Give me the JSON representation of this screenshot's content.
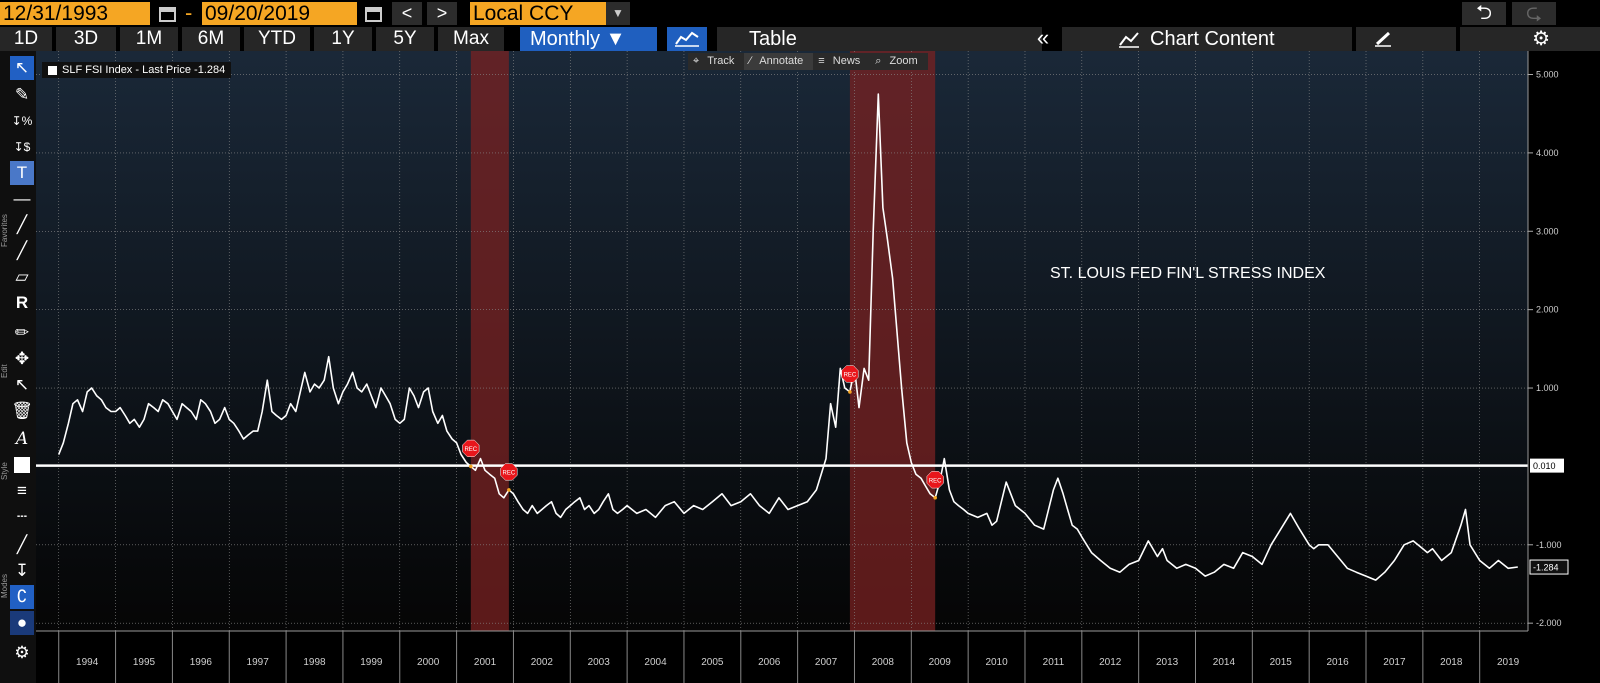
{
  "toolbar_top": {
    "start_date": "12/31/1993",
    "separator": "-",
    "end_date": "09/20/2019",
    "prev": "<",
    "next": ">",
    "currency": "Local CCY",
    "currency_caret": "▼",
    "undo": "⮌",
    "redo": "⮎"
  },
  "range_bar": {
    "buttons": [
      "1D",
      "3D",
      "1M",
      "6M",
      "YTD",
      "1Y",
      "5Y",
      "Max"
    ],
    "frequency": "Monthly ▼",
    "table": "Table",
    "collapse": "«",
    "chart_content": "Chart Content",
    "settings": "⚙"
  },
  "side": {
    "favorites": "Favorites",
    "edit": "Edit",
    "style": "Style",
    "modes": "Modes"
  },
  "chart_toolbar": {
    "track": "Track",
    "annotate": "Annotate",
    "news": "News",
    "zoom": "Zoom"
  },
  "legend": {
    "label": "SLF FSI Index - Last Price -1.284"
  },
  "annotation": "ST. LOUIS FED FIN'L STRESS INDEX",
  "colors": {
    "accent": "#f5a623",
    "selected": "#1f5fbf",
    "recession": "#7a2222",
    "line": "#ffffff"
  },
  "chart_data": {
    "type": "line",
    "title": "",
    "series": [
      {
        "name": "SLF FSI Index",
        "x": [
          1994.0,
          1994.08,
          1994.17,
          1994.25,
          1994.33,
          1994.42,
          1994.5,
          1994.58,
          1994.67,
          1994.75,
          1994.83,
          1994.92,
          1995.0,
          1995.08,
          1995.17,
          1995.25,
          1995.33,
          1995.42,
          1995.5,
          1995.58,
          1995.67,
          1995.75,
          1995.83,
          1995.92,
          1996.0,
          1996.08,
          1996.17,
          1996.25,
          1996.33,
          1996.42,
          1996.5,
          1996.58,
          1996.67,
          1996.75,
          1996.83,
          1996.92,
          1997.0,
          1997.08,
          1997.17,
          1997.25,
          1997.33,
          1997.42,
          1997.5,
          1997.58,
          1997.67,
          1997.75,
          1997.83,
          1997.92,
          1998.0,
          1998.08,
          1998.17,
          1998.25,
          1998.33,
          1998.42,
          1998.5,
          1998.58,
          1998.67,
          1998.75,
          1998.83,
          1998.92,
          1999.0,
          1999.08,
          1999.17,
          1999.25,
          1999.33,
          1999.42,
          1999.5,
          1999.58,
          1999.67,
          1999.75,
          1999.83,
          1999.92,
          2000.0,
          2000.08,
          2000.17,
          2000.25,
          2000.33,
          2000.42,
          2000.5,
          2000.58,
          2000.67,
          2000.75,
          2000.83,
          2000.92,
          2001.0,
          2001.08,
          2001.17,
          2001.25,
          2001.33,
          2001.42,
          2001.5,
          2001.58,
          2001.67,
          2001.75,
          2001.83,
          2001.92,
          2002.0,
          2002.08,
          2002.17,
          2002.25,
          2002.33,
          2002.42,
          2002.5,
          2002.58,
          2002.67,
          2002.75,
          2002.83,
          2002.92,
          2003.0,
          2003.08,
          2003.17,
          2003.25,
          2003.33,
          2003.42,
          2003.5,
          2003.58,
          2003.67,
          2003.75,
          2003.83,
          2003.92,
          2004.0,
          2004.17,
          2004.33,
          2004.5,
          2004.67,
          2004.83,
          2005.0,
          2005.17,
          2005.33,
          2005.5,
          2005.67,
          2005.83,
          2006.0,
          2006.17,
          2006.33,
          2006.5,
          2006.67,
          2006.83,
          2007.0,
          2007.17,
          2007.33,
          2007.5,
          2007.58,
          2007.67,
          2007.75,
          2007.83,
          2007.92,
          2008.0,
          2008.08,
          2008.17,
          2008.25,
          2008.33,
          2008.42,
          2008.5,
          2008.58,
          2008.67,
          2008.75,
          2008.83,
          2008.92,
          2009.0,
          2009.08,
          2009.17,
          2009.25,
          2009.33,
          2009.42,
          2009.5,
          2009.58,
          2009.67,
          2009.75,
          2009.83,
          2009.92,
          2010.0,
          2010.17,
          2010.33,
          2010.42,
          2010.5,
          2010.67,
          2010.83,
          2011.0,
          2011.17,
          2011.33,
          2011.5,
          2011.58,
          2011.67,
          2011.75,
          2011.83,
          2011.92,
          2012.0,
          2012.17,
          2012.33,
          2012.5,
          2012.67,
          2012.83,
          2013.0,
          2013.17,
          2013.33,
          2013.42,
          2013.5,
          2013.67,
          2013.83,
          2014.0,
          2014.17,
          2014.33,
          2014.5,
          2014.67,
          2014.83,
          2015.0,
          2015.17,
          2015.33,
          2015.5,
          2015.67,
          2015.83,
          2016.0,
          2016.08,
          2016.17,
          2016.33,
          2016.5,
          2016.67,
          2016.83,
          2017.0,
          2017.17,
          2017.33,
          2017.5,
          2017.67,
          2017.83,
          2018.0,
          2018.08,
          2018.17,
          2018.33,
          2018.5,
          2018.67,
          2018.75,
          2018.83,
          2019.0,
          2019.17,
          2019.33,
          2019.5,
          2019.67
        ],
        "values": [
          0.15,
          0.3,
          0.55,
          0.8,
          0.85,
          0.7,
          0.95,
          1.0,
          0.9,
          0.85,
          0.75,
          0.7,
          0.7,
          0.75,
          0.65,
          0.55,
          0.6,
          0.5,
          0.6,
          0.8,
          0.75,
          0.7,
          0.85,
          0.8,
          0.7,
          0.6,
          0.8,
          0.75,
          0.7,
          0.6,
          0.85,
          0.8,
          0.7,
          0.55,
          0.6,
          0.75,
          0.6,
          0.55,
          0.45,
          0.35,
          0.4,
          0.45,
          0.45,
          0.7,
          1.1,
          0.7,
          0.65,
          0.6,
          0.65,
          0.8,
          0.7,
          0.95,
          1.2,
          0.95,
          1.05,
          1.0,
          1.1,
          1.4,
          1.0,
          0.8,
          0.95,
          1.05,
          1.2,
          1.0,
          0.95,
          1.05,
          0.9,
          0.75,
          1.0,
          0.9,
          0.8,
          0.6,
          0.55,
          0.6,
          1.0,
          0.9,
          0.75,
          0.95,
          1.0,
          0.7,
          0.55,
          0.65,
          0.45,
          0.35,
          0.3,
          0.15,
          0.05,
          0.0,
          -0.05,
          0.1,
          -0.05,
          -0.1,
          -0.15,
          -0.35,
          -0.4,
          -0.3,
          -0.35,
          -0.45,
          -0.55,
          -0.6,
          -0.5,
          -0.6,
          -0.55,
          -0.5,
          -0.45,
          -0.6,
          -0.65,
          -0.55,
          -0.5,
          -0.45,
          -0.4,
          -0.55,
          -0.5,
          -0.6,
          -0.55,
          -0.45,
          -0.35,
          -0.55,
          -0.6,
          -0.55,
          -0.5,
          -0.6,
          -0.55,
          -0.65,
          -0.5,
          -0.45,
          -0.6,
          -0.5,
          -0.55,
          -0.45,
          -0.35,
          -0.5,
          -0.45,
          -0.35,
          -0.5,
          -0.6,
          -0.4,
          -0.55,
          -0.5,
          -0.45,
          -0.3,
          0.1,
          0.8,
          0.5,
          1.25,
          1.0,
          0.95,
          1.25,
          0.75,
          1.25,
          1.1,
          3.0,
          4.75,
          3.3,
          2.9,
          2.4,
          1.7,
          1.0,
          0.3,
          0.05,
          -0.1,
          -0.15,
          -0.25,
          -0.35,
          -0.4,
          -0.2,
          0.1,
          -0.3,
          -0.45,
          -0.5,
          -0.55,
          -0.6,
          -0.65,
          -0.6,
          -0.75,
          -0.7,
          -0.2,
          -0.5,
          -0.6,
          -0.75,
          -0.8,
          -0.3,
          -0.15,
          -0.35,
          -0.55,
          -0.75,
          -0.8,
          -0.9,
          -1.1,
          -1.2,
          -1.3,
          -1.35,
          -1.25,
          -1.2,
          -0.95,
          -1.15,
          -1.05,
          -1.2,
          -1.3,
          -1.25,
          -1.3,
          -1.4,
          -1.35,
          -1.25,
          -1.3,
          -1.1,
          -1.15,
          -1.25,
          -1.0,
          -0.8,
          -0.6,
          -0.8,
          -1.0,
          -1.05,
          -1.0,
          -1.0,
          -1.15,
          -1.3,
          -1.35,
          -1.4,
          -1.45,
          -1.35,
          -1.2,
          -1.0,
          -0.95,
          -1.05,
          -1.1,
          -1.05,
          -1.2,
          -1.1,
          -0.75,
          -0.55,
          -1.0,
          -1.2,
          -1.3,
          -1.2,
          -1.3,
          -1.284
        ]
      }
    ],
    "recessions": [
      [
        2001.25,
        2001.92
      ],
      [
        2007.92,
        2009.42
      ]
    ],
    "recession_marker_label": "REC",
    "reference_line": {
      "value": 0.01,
      "label": "0.010"
    },
    "last_value_label": "-1.284",
    "xlim": [
      1993.6,
      2019.85
    ],
    "ylim": [
      -2.1,
      5.3
    ],
    "ytick_values": [
      5.0,
      4.0,
      3.0,
      2.0,
      1.0,
      -1.0,
      -2.0
    ],
    "ytick_labels": [
      "5.000",
      "4.000",
      "3.000",
      "2.000",
      "1.000",
      "-1.000",
      "-2.000"
    ],
    "xtick_labels": [
      "1994",
      "1995",
      "1996",
      "1997",
      "1998",
      "1999",
      "2000",
      "2001",
      "2002",
      "2003",
      "2004",
      "2005",
      "2006",
      "2007",
      "2008",
      "2009",
      "2010",
      "2011",
      "2012",
      "2013",
      "2014",
      "2015",
      "2016",
      "2017",
      "2018",
      "2019"
    ],
    "grid": true
  }
}
